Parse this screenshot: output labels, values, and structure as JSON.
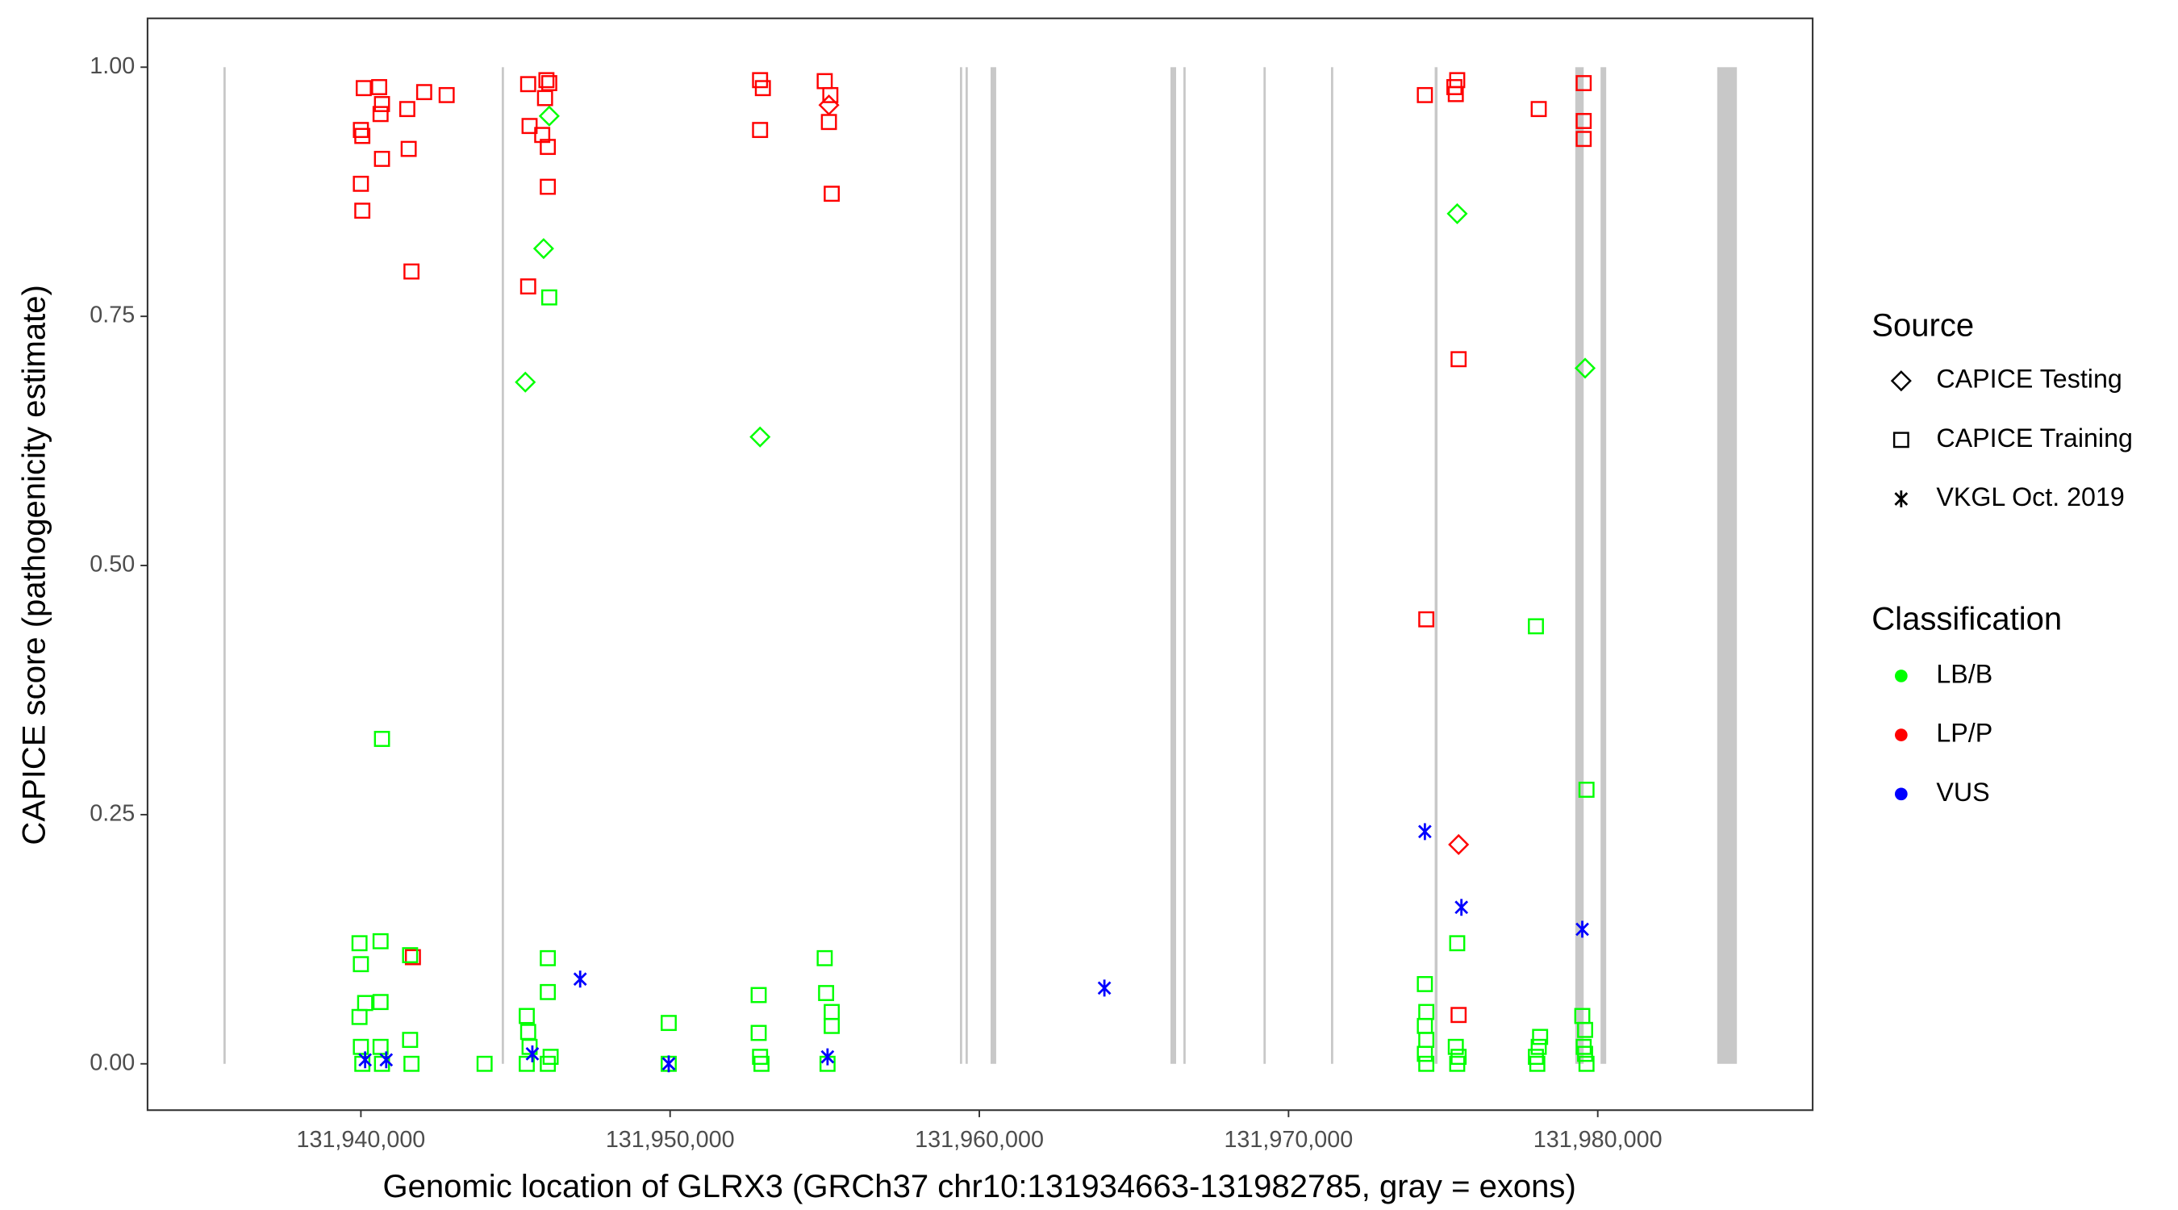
{
  "chart_data": {
    "type": "scatter",
    "x_label": "Genomic location of GLRX3 (GRCh37 chr10:131934663-131982785, gray = exons)",
    "y_label": "CAPICE score (pathogenicity estimate)",
    "xlim": [
      131933100,
      131986950
    ],
    "ylim": [
      -0.0465,
      1.049
    ],
    "xticks": [
      {
        "value": 131940000,
        "label": "131,940,000"
      },
      {
        "value": 131950000,
        "label": "131,950,000"
      },
      {
        "value": 131960000,
        "label": "131,960,000"
      },
      {
        "value": 131970000,
        "label": "131,970,000"
      },
      {
        "value": 131980000,
        "label": "131,980,000"
      }
    ],
    "yticks": [
      {
        "value": 0,
        "label": "0.00"
      },
      {
        "value": 0.25,
        "label": "0.25"
      },
      {
        "value": 0.5,
        "label": "0.50"
      },
      {
        "value": 0.75,
        "label": "0.75"
      },
      {
        "value": 1,
        "label": "1.00"
      }
    ],
    "exon_color": "#c8c8c8",
    "exons": [
      [
        131935591,
        131935591
      ],
      [
        131944591,
        131944591
      ],
      [
        131959409,
        131959409
      ],
      [
        131959591,
        131959591
      ],
      [
        131960364,
        131960545
      ],
      [
        131966182,
        131966364
      ],
      [
        131966636,
        131966636
      ],
      [
        131969227,
        131969227
      ],
      [
        131971409,
        131971409
      ],
      [
        131974727,
        131974818
      ],
      [
        131979273,
        131979545
      ],
      [
        131980091,
        131980273
      ],
      [
        131983864,
        131984500
      ]
    ],
    "legend_source": {
      "title": "Source",
      "items": [
        {
          "label": "CAPICE Testing",
          "shape": "diamond"
        },
        {
          "label": "CAPICE Training",
          "shape": "square"
        },
        {
          "label": "VKGL Oct. 2019",
          "shape": "asterisk"
        }
      ]
    },
    "legend_classification": {
      "title": "Classification",
      "items": [
        {
          "label": "LB/B",
          "color": "#00ff00"
        },
        {
          "label": "LP/P",
          "color": "#ff0000"
        },
        {
          "label": "VUS",
          "color": "#0000ff"
        }
      ]
    },
    "series": [
      {
        "shape": "square",
        "color": "#ff0000",
        "x": [
          131940000,
          131940046,
          131940092,
          131940000,
          131940046,
          131940591,
          131940636,
          131940682,
          131940682,
          131941500,
          131941545,
          131941636,
          131941682,
          131942046,
          131942773,
          131945409,
          131945455,
          131945409,
          131945864,
          131945955,
          131946000,
          131946091,
          131946045,
          131946045,
          131952909,
          131953000,
          131952909,
          131955000,
          131955182,
          131955136,
          131955227,
          131974409,
          131974455,
          131975364,
          131975455,
          131975409,
          131975500,
          131975500,
          131978091,
          131979545,
          131979545,
          131979545
        ],
        "values": [
          0.937,
          0.931,
          0.979,
          0.883,
          0.856,
          0.98,
          0.953,
          0.963,
          0.908,
          0.958,
          0.918,
          0.795,
          0.107,
          0.975,
          0.972,
          0.983,
          0.941,
          0.78,
          0.932,
          0.969,
          0.987,
          0.984,
          0.92,
          0.88,
          0.987,
          0.979,
          0.937,
          0.986,
          0.972,
          0.945,
          0.873,
          0.972,
          0.446,
          0.98,
          0.987,
          0.973,
          0.707,
          0.049,
          0.958,
          0.984,
          0.946,
          0.928
        ]
      },
      {
        "shape": "square",
        "color": "#00ff00",
        "x": [
          131940682,
          131939955,
          131940000,
          131940137,
          131939955,
          131940636,
          131940636,
          131940000,
          131940046,
          131940636,
          131940682,
          131941591,
          131941636,
          131941591,
          131944000,
          131945364,
          131945409,
          131945455,
          131945364,
          131946045,
          131946045,
          131946091,
          131946045,
          131946136,
          131949955,
          131949955,
          131952864,
          131952864,
          131952909,
          131952955,
          131955000,
          131955045,
          131955227,
          131955227,
          131955091,
          131974409,
          131974455,
          131974409,
          131974455,
          131974409,
          131974455,
          131975455,
          131975409,
          131975455,
          131975500,
          131978000,
          131978045,
          131978091,
          131978136,
          131978000,
          131979500,
          131979591,
          131979636,
          131979636,
          131979545,
          131979591
        ],
        "values": [
          0.326,
          0.121,
          0.1,
          0.061,
          0.047,
          0.062,
          0.123,
          0.017,
          0,
          0.017,
          0,
          0.024,
          0,
          0.109,
          0,
          0.048,
          0.032,
          0.017,
          0,
          0.106,
          0.072,
          0.769,
          0,
          0.007,
          0.041,
          0,
          0.069,
          0.031,
          0.007,
          0,
          0.106,
          0.071,
          0.052,
          0.038,
          0,
          0.08,
          0.052,
          0.038,
          0.024,
          0.01,
          0,
          0.121,
          0.017,
          0,
          0.007,
          0.439,
          0,
          0.017,
          0.027,
          0.007,
          0.048,
          0.034,
          0.275,
          0,
          0.017,
          0.01
        ]
      },
      {
        "shape": "diamond",
        "color": "#00ff00",
        "x": [
          131945318,
          131945909,
          131946091,
          131952909,
          131975455,
          131979591
        ],
        "values": [
          0.684,
          0.818,
          0.951,
          0.629,
          0.853,
          0.698
        ]
      },
      {
        "shape": "diamond",
        "color": "#ff0000",
        "x": [
          131955136,
          131975500
        ],
        "values": [
          0.962,
          0.22
        ]
      },
      {
        "shape": "asterisk",
        "color": "#0000ff",
        "x": [
          131940137,
          131940819,
          131945545,
          131947091,
          131949955,
          131955091,
          131964045,
          131974409,
          131975591,
          131979500
        ],
        "values": [
          0.004,
          0.004,
          0.01,
          0.085,
          0,
          0.007,
          0.076,
          0.233,
          0.157,
          0.135
        ]
      }
    ]
  }
}
